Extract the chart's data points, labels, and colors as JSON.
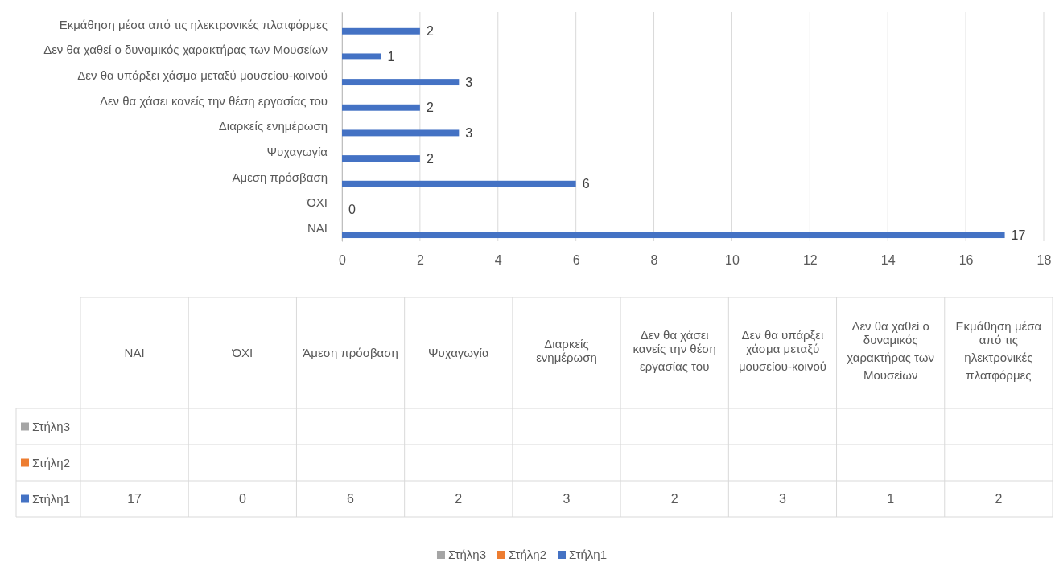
{
  "chart_data": [
    {
      "type": "bar",
      "orientation": "horizontal",
      "categories": [
        "Εκμάθηση μέσα από τις ηλεκτρονικές πλατφόρμες",
        "Δεν θα χαθεί ο δυναμικός χαρακτήρας των Μουσείων",
        "Δεν θα υπάρξει χάσμα μεταξύ μουσείου-κοινού",
        "Δεν θα χάσει κανείς την θέση εργασίας του",
        "Διαρκείς ενημέρωση",
        "Ψυχαγωγία",
        "Άμεση πρόσβαση",
        "ΌΧΙ",
        "ΝΑΙ"
      ],
      "series": [
        {
          "name": "Στήλη1",
          "color": "#4472c4",
          "values": [
            2,
            1,
            3,
            2,
            3,
            2,
            6,
            0,
            17
          ]
        },
        {
          "name": "Στήλη2",
          "color": "#ed7d31",
          "values": [
            null,
            null,
            null,
            null,
            null,
            null,
            null,
            null,
            null
          ]
        },
        {
          "name": "Στήλη3",
          "color": "#a5a5a5",
          "values": [
            null,
            null,
            null,
            null,
            null,
            null,
            null,
            null,
            null
          ]
        }
      ],
      "xlim": [
        0,
        18
      ],
      "xticks": [
        0,
        2,
        4,
        6,
        8,
        10,
        12,
        14,
        16,
        18
      ],
      "grid": "x",
      "legend": "bottom",
      "data_labels": true
    },
    {
      "type": "other",
      "categories": [
        "ΝΑΙ",
        "ΌΧΙ",
        "Άμεση πρόσβαση",
        "Ψυχαγωγία",
        "Διαρκείς ενημέρωση",
        "Δεν θα χάσει κανείς την θέση εργασίας του",
        "Δεν θα υπάρξει χάσμα μεταξύ μουσείου-κοινού",
        "Δεν θα χαθεί ο δυναμικός χαρακτήρας των Μουσείων",
        "Εκμάθηση μέσα από τις ηλεκτρονικές πλατφόρμες"
      ],
      "series": [
        {
          "name": "Στήλη1",
          "color": "#4472c4",
          "values": [
            17,
            0,
            6,
            2,
            3,
            2,
            3,
            1,
            2
          ]
        },
        {
          "name": "Στήλη2",
          "color": "#ed7d31",
          "values": [
            null,
            null,
            null,
            null,
            null,
            null,
            null,
            null,
            null
          ]
        },
        {
          "name": "Στήλη3",
          "color": "#a5a5a5",
          "values": [
            null,
            null,
            null,
            null,
            null,
            null,
            null,
            null,
            null
          ]
        }
      ],
      "data_labels": true
    }
  ]
}
